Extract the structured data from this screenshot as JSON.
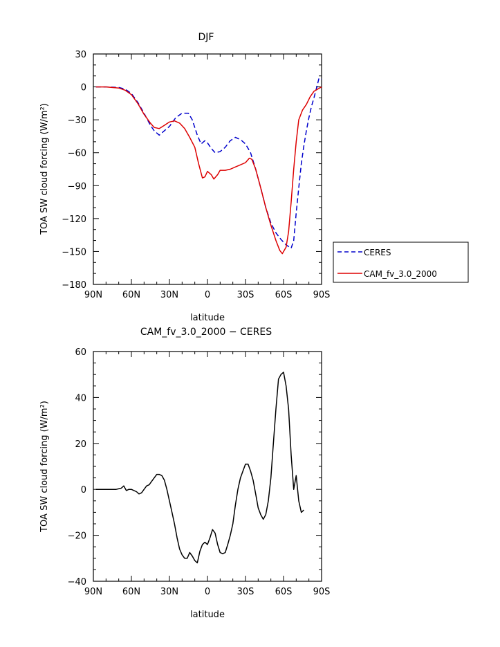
{
  "chart_data": [
    {
      "type": "line",
      "title": "DJF",
      "xlabel": "latitude",
      "ylabel": "TOA SW cloud forcing (W/m²)",
      "xlim": [
        90,
        -90
      ],
      "ylim": [
        -180,
        30
      ],
      "x_ticks": [
        90,
        60,
        30,
        0,
        -30,
        -60,
        -90
      ],
      "x_tick_labels": [
        "90N",
        "60N",
        "30N",
        "0",
        "30S",
        "60S",
        "90S"
      ],
      "y_ticks": [
        30,
        0,
        -30,
        -60,
        -90,
        -120,
        -150,
        -180
      ],
      "y_tick_labels": [
        "30",
        "0",
        "−30",
        "−60",
        "−90",
        "−120",
        "−150",
        "−180"
      ],
      "legend_position": "right",
      "series": [
        {
          "name": "CERES",
          "color": "#0000cc",
          "dash": true,
          "points": [
            [
              88,
              0
            ],
            [
              80,
              0
            ],
            [
              70,
              -0.5
            ],
            [
              65,
              -2
            ],
            [
              60,
              -6
            ],
            [
              55,
              -14
            ],
            [
              50,
              -24
            ],
            [
              45,
              -35
            ],
            [
              42,
              -40
            ],
            [
              38,
              -44
            ],
            [
              35,
              -41
            ],
            [
              30,
              -36
            ],
            [
              25,
              -28
            ],
            [
              20,
              -24
            ],
            [
              15,
              -24
            ],
            [
              12,
              -30
            ],
            [
              8,
              -44
            ],
            [
              5,
              -52
            ],
            [
              2,
              -49
            ],
            [
              0,
              -51
            ],
            [
              -3,
              -56
            ],
            [
              -6,
              -60
            ],
            [
              -10,
              -59
            ],
            [
              -14,
              -55
            ],
            [
              -18,
              -49
            ],
            [
              -22,
              -46
            ],
            [
              -26,
              -48
            ],
            [
              -30,
              -52
            ],
            [
              -34,
              -60
            ],
            [
              -38,
              -75
            ],
            [
              -42,
              -92
            ],
            [
              -46,
              -110
            ],
            [
              -50,
              -124
            ],
            [
              -54,
              -133
            ],
            [
              -58,
              -139
            ],
            [
              -62,
              -144
            ],
            [
              -66,
              -147
            ],
            [
              -68,
              -140
            ],
            [
              -70,
              -115
            ],
            [
              -72,
              -92
            ],
            [
              -74,
              -70
            ],
            [
              -76,
              -54
            ],
            [
              -78,
              -40
            ],
            [
              -80,
              -28
            ],
            [
              -82,
              -18
            ],
            [
              -84,
              -10
            ],
            [
              -86,
              -1
            ],
            [
              -88,
              8
            ],
            [
              -90,
              7
            ]
          ]
        },
        {
          "name": "CAM_fv_3.0_2000",
          "color": "#dd0000",
          "dash": false,
          "points": [
            [
              88,
              0
            ],
            [
              80,
              0
            ],
            [
              70,
              -1
            ],
            [
              65,
              -3
            ],
            [
              60,
              -7
            ],
            [
              55,
              -15
            ],
            [
              50,
              -25
            ],
            [
              45,
              -33
            ],
            [
              42,
              -37
            ],
            [
              38,
              -38
            ],
            [
              34,
              -35
            ],
            [
              30,
              -32
            ],
            [
              26,
              -31
            ],
            [
              22,
              -33
            ],
            [
              18,
              -38
            ],
            [
              14,
              -46
            ],
            [
              10,
              -55
            ],
            [
              7,
              -70
            ],
            [
              4,
              -83
            ],
            [
              2,
              -82
            ],
            [
              0,
              -77
            ],
            [
              -3,
              -80
            ],
            [
              -5,
              -84
            ],
            [
              -8,
              -80
            ],
            [
              -10,
              -76
            ],
            [
              -14,
              -76
            ],
            [
              -18,
              -75
            ],
            [
              -22,
              -73
            ],
            [
              -26,
              -71
            ],
            [
              -30,
              -69
            ],
            [
              -33,
              -65
            ],
            [
              -35,
              -66
            ],
            [
              -38,
              -75
            ],
            [
              -42,
              -92
            ],
            [
              -46,
              -110
            ],
            [
              -50,
              -126
            ],
            [
              -54,
              -140
            ],
            [
              -57,
              -149
            ],
            [
              -59,
              -152
            ],
            [
              -62,
              -146
            ],
            [
              -64,
              -132
            ],
            [
              -66,
              -105
            ],
            [
              -68,
              -75
            ],
            [
              -70,
              -50
            ],
            [
              -72,
              -30
            ],
            [
              -75,
              -21
            ],
            [
              -78,
              -16
            ],
            [
              -81,
              -9
            ],
            [
              -84,
              -4
            ],
            [
              -87,
              -2
            ],
            [
              -90,
              0
            ]
          ]
        }
      ]
    },
    {
      "type": "line",
      "title": "CAM_fv_3.0_2000 − CERES",
      "xlabel": "latitude",
      "ylabel": "TOA SW cloud forcing (W/m²)",
      "xlim": [
        90,
        -90
      ],
      "ylim": [
        -40,
        60
      ],
      "x_ticks": [
        90,
        60,
        30,
        0,
        -30,
        -60,
        -90
      ],
      "x_tick_labels": [
        "90N",
        "60N",
        "30N",
        "0",
        "30S",
        "60S",
        "90S"
      ],
      "y_ticks": [
        60,
        40,
        20,
        0,
        -20,
        -40
      ],
      "y_tick_labels": [
        "60",
        "40",
        "20",
        "0",
        "−20",
        "−40"
      ],
      "series": [
        {
          "color": "#000000",
          "dash": false,
          "points": [
            [
              88,
              0
            ],
            [
              80,
              0
            ],
            [
              72,
              0
            ],
            [
              68,
              0.5
            ],
            [
              66,
              1.5
            ],
            [
              64,
              -0.5
            ],
            [
              62,
              0
            ],
            [
              60,
              0
            ],
            [
              58,
              -0.5
            ],
            [
              56,
              -1
            ],
            [
              54,
              -2
            ],
            [
              52,
              -1.5
            ],
            [
              50,
              0
            ],
            [
              48,
              1.5
            ],
            [
              46,
              2
            ],
            [
              44,
              3.5
            ],
            [
              42,
              5
            ],
            [
              40,
              6.5
            ],
            [
              38,
              6.5
            ],
            [
              36,
              6
            ],
            [
              34,
              4
            ],
            [
              32,
              0
            ],
            [
              30,
              -5
            ],
            [
              28,
              -10
            ],
            [
              26,
              -15
            ],
            [
              24,
              -21
            ],
            [
              22,
              -26
            ],
            [
              20,
              -28.5
            ],
            [
              18,
              -30
            ],
            [
              16,
              -30
            ],
            [
              14,
              -27.5
            ],
            [
              12,
              -29
            ],
            [
              10,
              -31
            ],
            [
              8,
              -32
            ],
            [
              6,
              -27
            ],
            [
              4,
              -24
            ],
            [
              2,
              -23
            ],
            [
              0,
              -24
            ],
            [
              -2,
              -21
            ],
            [
              -4,
              -17.5
            ],
            [
              -6,
              -19
            ],
            [
              -8,
              -24
            ],
            [
              -10,
              -27.5
            ],
            [
              -12,
              -28
            ],
            [
              -14,
              -27.5
            ],
            [
              -16,
              -24
            ],
            [
              -18,
              -20
            ],
            [
              -20,
              -15
            ],
            [
              -22,
              -7
            ],
            [
              -24,
              0
            ],
            [
              -26,
              5
            ],
            [
              -28,
              8
            ],
            [
              -30,
              11
            ],
            [
              -32,
              11
            ],
            [
              -34,
              8
            ],
            [
              -36,
              4
            ],
            [
              -38,
              -2
            ],
            [
              -40,
              -8
            ],
            [
              -42,
              -11
            ],
            [
              -44,
              -13
            ],
            [
              -46,
              -11
            ],
            [
              -48,
              -5
            ],
            [
              -50,
              5
            ],
            [
              -52,
              20
            ],
            [
              -54,
              35
            ],
            [
              -56,
              48
            ],
            [
              -58,
              50
            ],
            [
              -60,
              51
            ],
            [
              -62,
              45
            ],
            [
              -64,
              35
            ],
            [
              -66,
              15
            ],
            [
              -68,
              0
            ],
            [
              -70,
              6
            ],
            [
              -72,
              -5
            ],
            [
              -74,
              -10
            ],
            [
              -76,
              -9
            ]
          ]
        }
      ]
    }
  ]
}
